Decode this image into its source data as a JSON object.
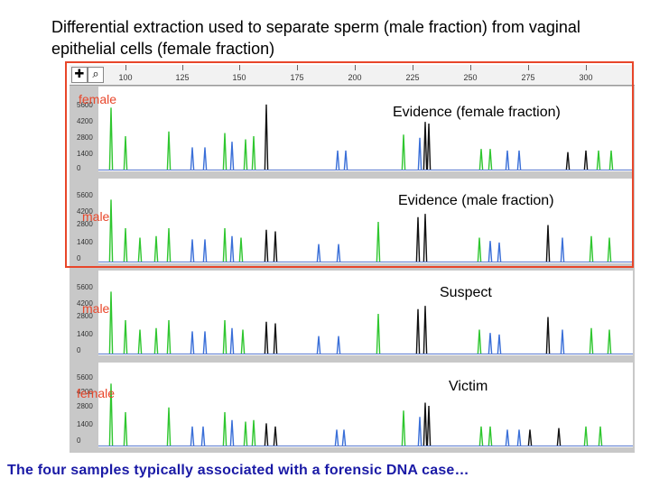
{
  "title": "Differential extraction used to separate sperm (male fraction) from vaginal epithelial cells (female fraction)",
  "caption": "The four samples typically associated with a forensic DNA case…",
  "ruler": {
    "tools": [
      "plus-cross-tool",
      "magnifier-tool"
    ],
    "ticks": [
      "100",
      "125",
      "150",
      "175",
      "200",
      "225",
      "250",
      "275",
      "300"
    ]
  },
  "yticks": [
    "5600",
    "4200",
    "2800",
    "1400",
    "0"
  ],
  "panels": [
    {
      "sample_label": "female",
      "evidence_label": "Evidence (female fraction)"
    },
    {
      "sample_label": "male",
      "evidence_label": "Evidence (male fraction)"
    },
    {
      "sample_label": "male",
      "evidence_label": "Suspect"
    },
    {
      "sample_label": "female",
      "evidence_label": "Victim"
    }
  ],
  "colors": {
    "green": "#2fc62f",
    "blue": "#3a6fd8",
    "black": "#111111",
    "highlight": "#e8462a",
    "caption": "#1a1aa6"
  }
}
